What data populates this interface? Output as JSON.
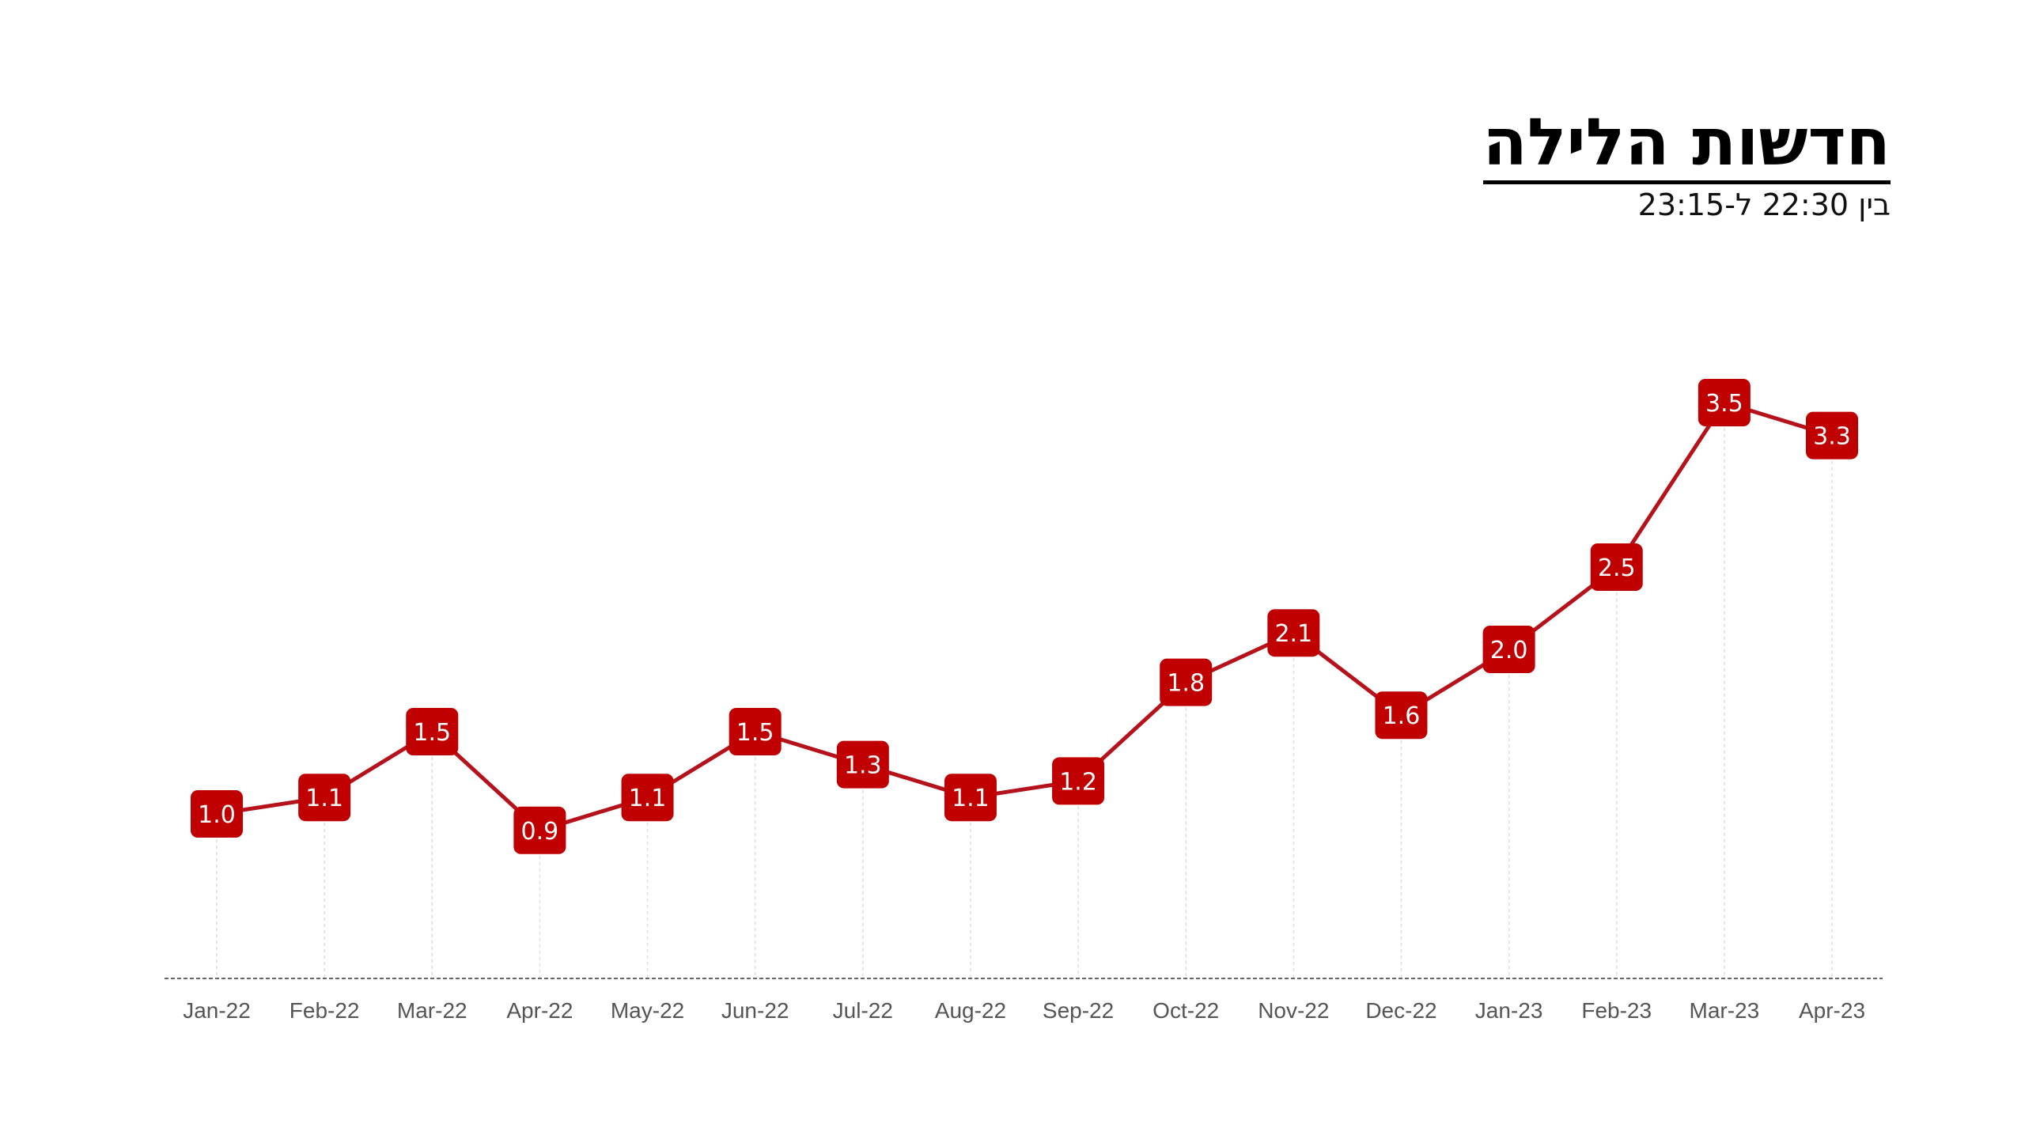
{
  "header": {
    "title": "חדשות הלילה",
    "subtitle": "בין 22:30 ל-23:15"
  },
  "colors": {
    "line": "#b5121b",
    "label_bg": "#c00000",
    "label_text": "#ffffff",
    "axis": "#666666",
    "grid": "#dddddd"
  },
  "chart_data": {
    "type": "line",
    "title": "חדשות הלילה",
    "subtitle": "בין 22:30 ל-23:15",
    "categories": [
      "Jan-22",
      "Feb-22",
      "Mar-22",
      "Apr-22",
      "May-22",
      "Jun-22",
      "Jul-22",
      "Aug-22",
      "Sep-22",
      "Oct-22",
      "Nov-22",
      "Dec-22",
      "Jan-23",
      "Feb-23",
      "Mar-23",
      "Apr-23"
    ],
    "values": [
      1.0,
      1.1,
      1.5,
      0.9,
      1.1,
      1.5,
      1.3,
      1.1,
      1.2,
      1.8,
      2.1,
      1.6,
      2.0,
      2.5,
      3.5,
      3.3
    ],
    "data_labels": [
      "1.0",
      "1.1",
      "1.5",
      "0.9",
      "1.1",
      "1.5",
      "1.3",
      "1.1",
      "1.2",
      "1.8",
      "2.1",
      "1.6",
      "2.0",
      "2.5",
      "3.5",
      "3.3"
    ],
    "xlabel": "",
    "ylabel": "",
    "ylim": [
      0,
      4.5
    ],
    "grid": "vertical dashed drop lines",
    "legend": "none"
  }
}
